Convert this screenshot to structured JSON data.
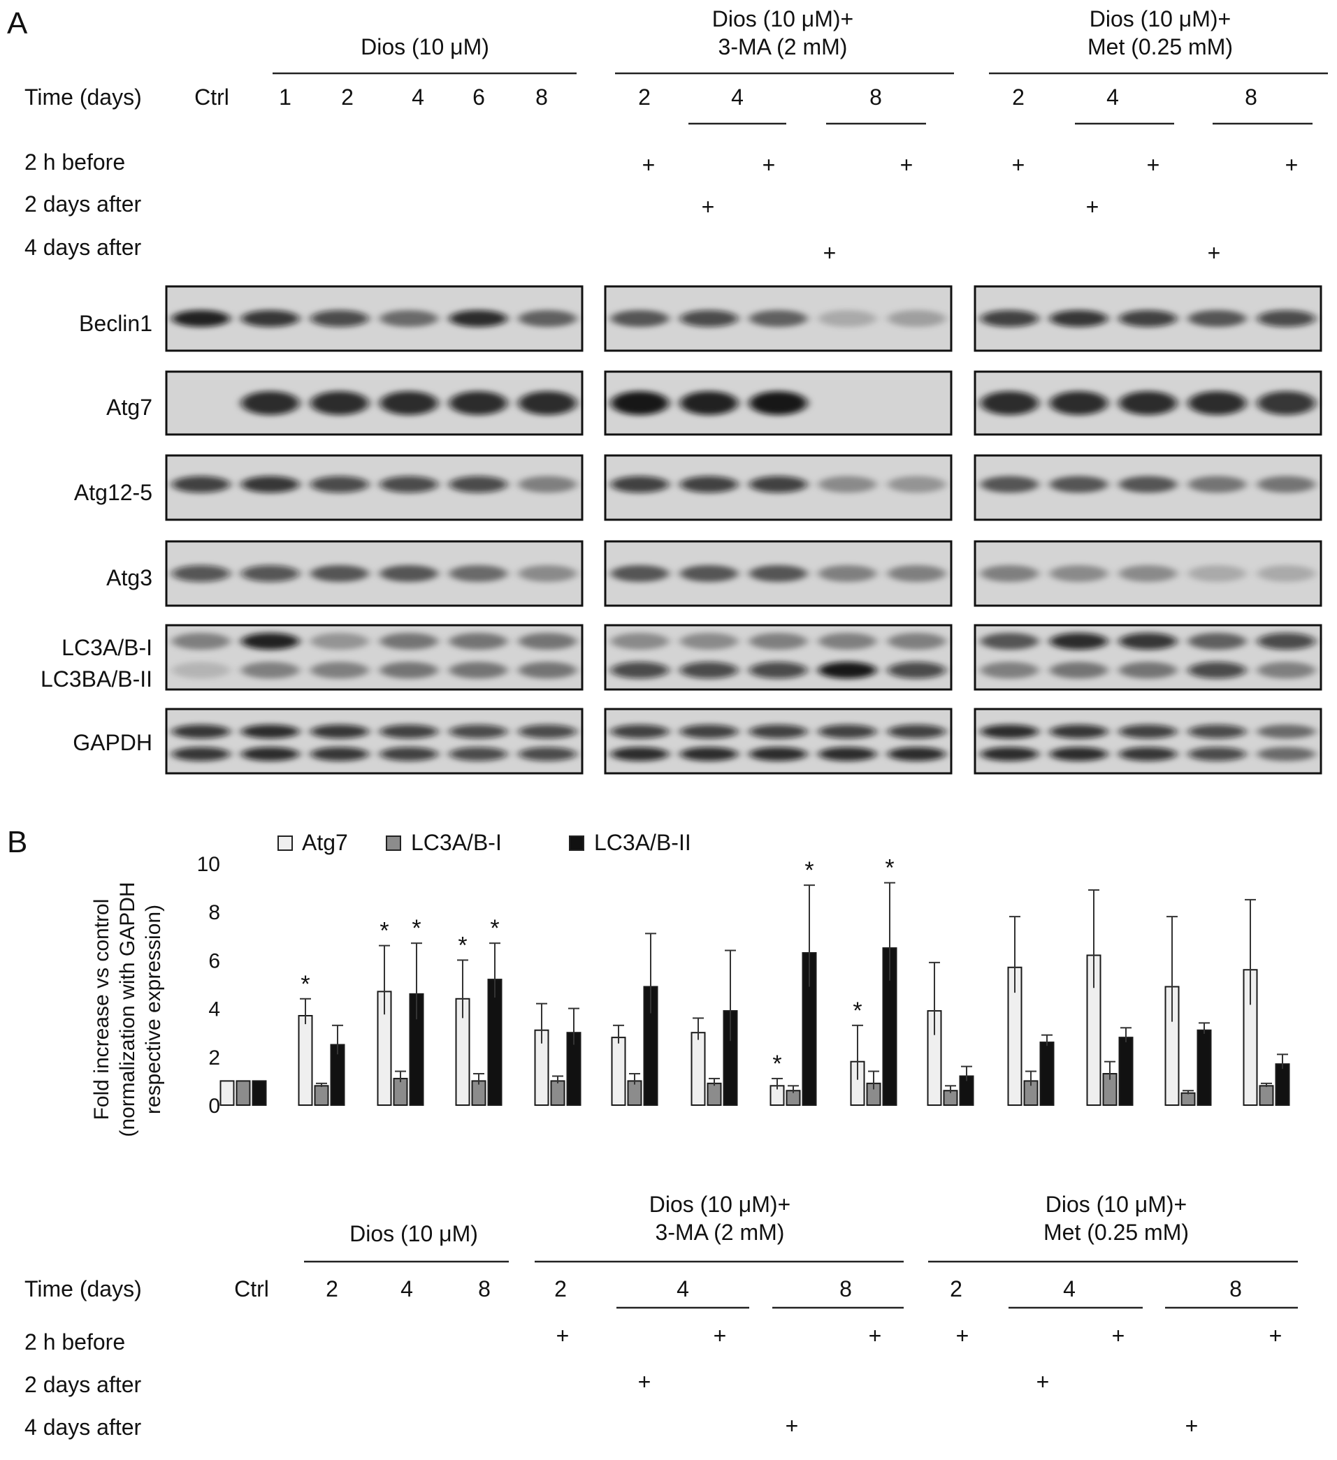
{
  "panelA": {
    "letter": "A",
    "groups": [
      "Dios (10 μM)",
      "Dios (10 μM)+",
      "3-MA (2 mM)",
      "Dios (10 μM)+",
      "Met (0.25 mM)"
    ],
    "time_label": "Time (days)",
    "ctrl": "Ctrl",
    "dios_days": [
      "1",
      "2",
      "4",
      "6",
      "8"
    ],
    "combo_days": [
      "2",
      "4",
      "8"
    ],
    "cond_rows": [
      "2 h before",
      "2 days after",
      "4 days after"
    ],
    "plus": "+",
    "proteins": [
      "Beclin1",
      "Atg7",
      "Atg12-5",
      "Atg3",
      "LC3A/B-I",
      "LC3BA/B-II",
      "GAPDH"
    ]
  },
  "panelB": {
    "letter": "B",
    "groups": [
      "Dios (10 μM)",
      "Dios (10 μM)+",
      "3-MA (2 mM)",
      "Dios (10 μM)+",
      "Met (0.25 mM)"
    ],
    "time_label": "Time (days)",
    "ctrl": "Ctrl",
    "dios_days": [
      "2",
      "4",
      "8"
    ],
    "combo_days": [
      "2",
      "4",
      "8"
    ],
    "cond_rows": [
      "2 h before",
      "2 days after",
      "4 days after"
    ],
    "plus": "+",
    "star": "*"
  },
  "colors": {
    "atg7": "#efefef",
    "lc3i": "#8c8c8c",
    "lc3ii": "#111111",
    "blot_bg": "#d4d4d4"
  },
  "chart_data": {
    "type": "bar",
    "ylabel": [
      "Fold increase vs control",
      "(normalization with GAPDH",
      "respective expression)"
    ],
    "ylim": [
      0,
      10
    ],
    "yticks": [
      "0",
      "2",
      "4",
      "6",
      "8",
      "10"
    ],
    "legend": "top",
    "grid": false,
    "categories": [
      "Ctrl",
      "Dios 2",
      "Dios 4",
      "Dios 8",
      "3-MA 2 (2 h before)",
      "3-MA 4 (2 days after)",
      "3-MA 4 (2 h before)",
      "3-MA 8 (4 days after)",
      "3-MA 8 (2 h before)",
      "Met 2 (2 h before)",
      "Met 4 (2 days after)",
      "Met 4 (2 h before)",
      "Met 8 (4 days after)",
      "Met 8 (2 h before)"
    ],
    "series": [
      {
        "name": "Atg7",
        "values": [
          1.0,
          3.7,
          4.7,
          4.4,
          3.1,
          2.8,
          3.0,
          0.8,
          1.8,
          3.9,
          5.7,
          6.2,
          4.9,
          5.6
        ],
        "errors": [
          0,
          0.7,
          1.9,
          1.6,
          1.1,
          0.5,
          0.6,
          0.3,
          1.5,
          2.0,
          2.1,
          2.7,
          2.9,
          2.9
        ]
      },
      {
        "name": "LC3A/B-I",
        "values": [
          1.0,
          0.8,
          1.1,
          1.0,
          1.0,
          1.0,
          0.9,
          0.6,
          0.9,
          0.6,
          1.0,
          1.3,
          0.5,
          0.8
        ],
        "errors": [
          0,
          0.1,
          0.3,
          0.3,
          0.2,
          0.3,
          0.2,
          0.2,
          0.5,
          0.2,
          0.4,
          0.5,
          0.1,
          0.1
        ]
      },
      {
        "name": "LC3A/B-II",
        "values": [
          1.0,
          2.5,
          4.6,
          5.2,
          3.0,
          4.9,
          3.9,
          6.3,
          6.5,
          1.2,
          2.6,
          2.8,
          3.1,
          1.7
        ],
        "errors": [
          0,
          0.8,
          2.1,
          1.5,
          1.0,
          2.2,
          2.5,
          2.8,
          2.7,
          0.4,
          0.3,
          0.4,
          0.3,
          0.4
        ]
      }
    ],
    "significant": [
      [
        false,
        true,
        true,
        true,
        false,
        false,
        false,
        true,
        true,
        false,
        false,
        false,
        false,
        false
      ],
      [
        false,
        false,
        false,
        false,
        false,
        false,
        false,
        false,
        false,
        false,
        false,
        false,
        false,
        false
      ],
      [
        false,
        false,
        true,
        true,
        false,
        false,
        false,
        true,
        true,
        false,
        false,
        false,
        false,
        false
      ]
    ]
  }
}
